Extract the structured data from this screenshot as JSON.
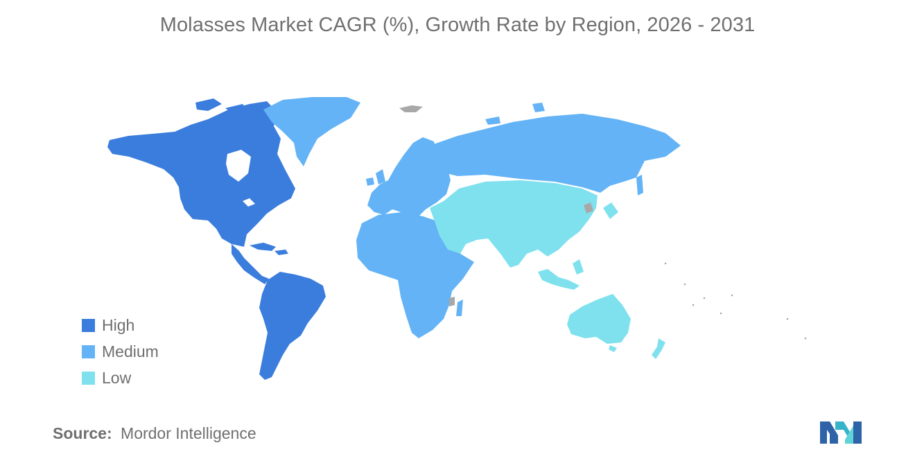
{
  "title": "Molasses Market CAGR (%), Growth Rate by Region, 2026 - 2031",
  "legend": [
    {
      "label": "High",
      "color": "#3b7ddd"
    },
    {
      "label": "Medium",
      "color": "#63b3f6"
    },
    {
      "label": "Low",
      "color": "#7fe1ee"
    }
  ],
  "no_data_color": "#a8a8a8",
  "regions": [
    {
      "name": "North America",
      "level": "High"
    },
    {
      "name": "South America",
      "level": "High"
    },
    {
      "name": "Europe",
      "level": "Medium"
    },
    {
      "name": "Africa",
      "level": "Medium"
    },
    {
      "name": "Russia",
      "level": "Medium"
    },
    {
      "name": "Greenland",
      "level": "Medium"
    },
    {
      "name": "Asia",
      "level": "Low"
    },
    {
      "name": "Middle East",
      "level": "Low"
    },
    {
      "name": "Australia",
      "level": "Low"
    },
    {
      "name": "New Zealand",
      "level": "Low"
    }
  ],
  "source": {
    "label": "Source:",
    "text": "Mordor Intelligence"
  },
  "logo_icon": "mordor-intelligence-logo-icon"
}
